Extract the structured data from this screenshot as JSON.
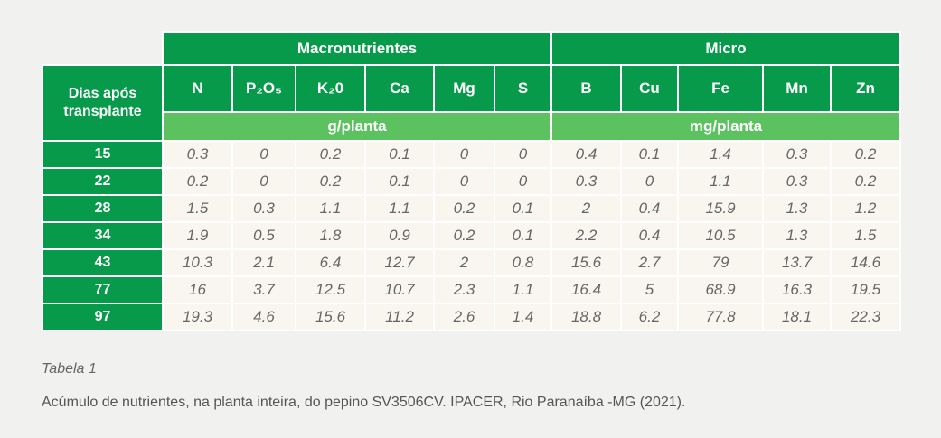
{
  "table": {
    "group_headers": [
      "Macronutrientes",
      "Micro"
    ],
    "row_header": "Dias após transplante",
    "columns": [
      "N",
      "P₂O₅",
      "K₂0",
      "Ca",
      "Mg",
      "S",
      "B",
      "Cu",
      "Fe",
      "Mn",
      "Zn"
    ],
    "units": [
      "g/planta",
      "mg/planta"
    ],
    "rows": [
      {
        "day": 15,
        "values": [
          0.3,
          0,
          0.2,
          0.1,
          0,
          0,
          0.4,
          0.1,
          1.4,
          0.3,
          0.2
        ]
      },
      {
        "day": 22,
        "values": [
          0.2,
          0,
          0.2,
          0.1,
          0,
          0,
          0.3,
          0,
          1.1,
          0.3,
          0.2
        ]
      },
      {
        "day": 28,
        "values": [
          1.5,
          0.3,
          1.1,
          1.1,
          0.2,
          0.1,
          2,
          0.4,
          15.9,
          1.3,
          1.2
        ]
      },
      {
        "day": 34,
        "values": [
          1.9,
          0.5,
          1.8,
          0.9,
          0.2,
          0.1,
          2.2,
          0.4,
          10.5,
          1.3,
          1.5
        ]
      },
      {
        "day": 43,
        "values": [
          10.3,
          2.1,
          6.4,
          12.7,
          2,
          0.8,
          15.6,
          2.7,
          79,
          13.7,
          14.6
        ]
      },
      {
        "day": 77,
        "values": [
          16,
          3.7,
          12.5,
          10.7,
          2.3,
          1.1,
          16.4,
          5,
          68.9,
          16.3,
          19.5
        ]
      },
      {
        "day": 97,
        "values": [
          19.3,
          4.6,
          15.6,
          11.2,
          2.6,
          1.4,
          18.8,
          6.2,
          77.8,
          18.1,
          22.3
        ]
      }
    ]
  },
  "caption": {
    "label": "Tabela 1",
    "text": "Acúmulo de nutrientes, na planta inteira, do pepino SV3506CV. IPACER, Rio Paranaíba -MG (2021)."
  }
}
